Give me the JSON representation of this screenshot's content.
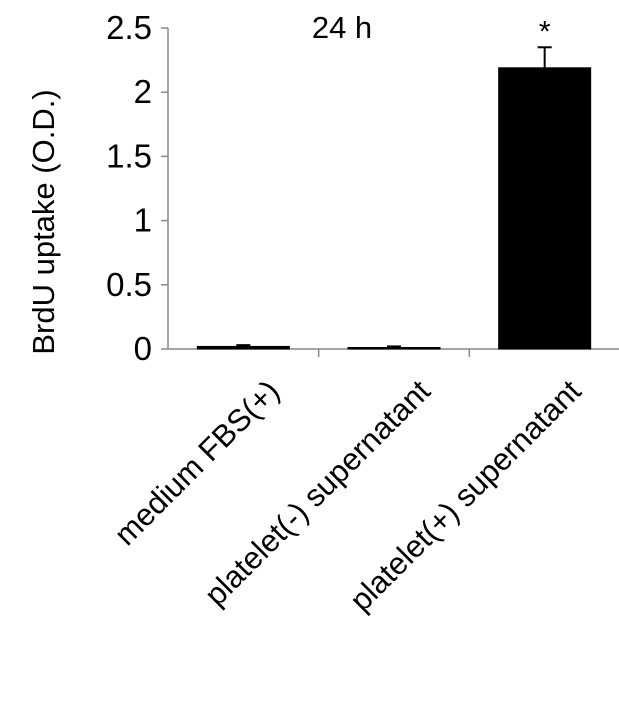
{
  "chart_data": {
    "type": "bar",
    "title": "24 h",
    "xlabel": "",
    "ylabel": "BrdU uptake (O.D.)",
    "categories": [
      "medium FBS(+)",
      "platelet(-) supernatant",
      "platelet(+) supernatant"
    ],
    "values": [
      0.02,
      0.01,
      2.19
    ],
    "errors": [
      0.01,
      0.01,
      0.16
    ],
    "annotations": [
      "",
      "",
      "*"
    ],
    "ylim": [
      0,
      2.5
    ],
    "yticks": [
      0,
      0.5,
      1,
      1.5,
      2,
      2.5
    ],
    "ytick_labels": [
      "0",
      "0.5",
      "1",
      "1.5",
      "2",
      "2.5"
    ],
    "bar_color": "#000000",
    "grid": false
  }
}
